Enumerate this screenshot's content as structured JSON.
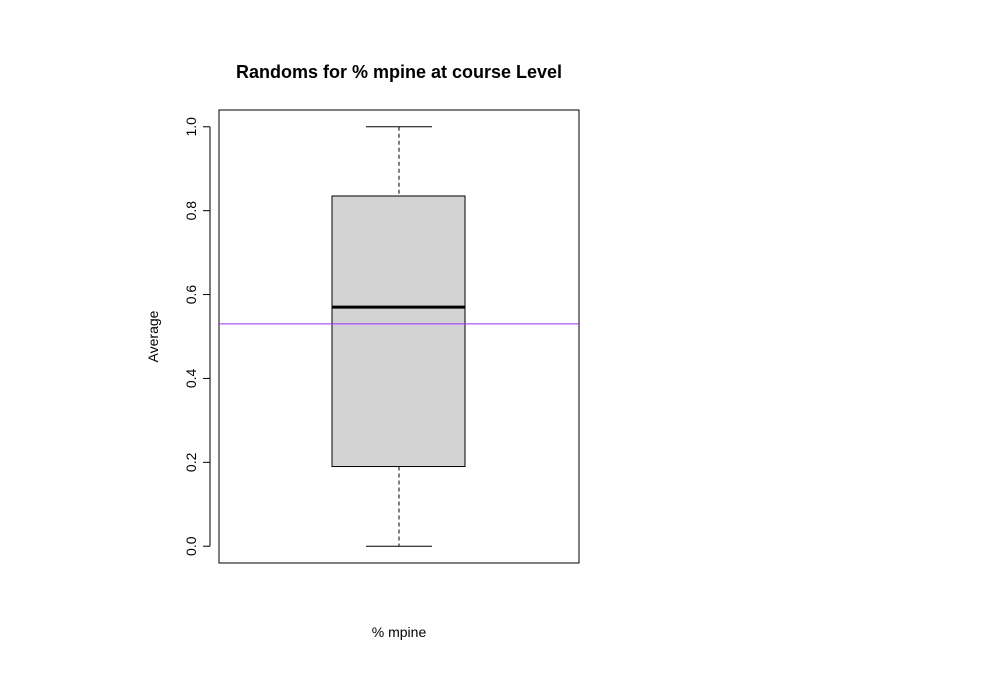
{
  "chart_data": {
    "type": "boxplot",
    "title": "Randoms for % mpine at course Level",
    "xlabel": "% mpine",
    "ylabel": "Average",
    "ylim": [
      -0.04,
      1.04
    ],
    "yticks": [
      0.0,
      0.2,
      0.4,
      0.6,
      0.8,
      1.0
    ],
    "ytick_labels": [
      "0.0",
      "0.2",
      "0.4",
      "0.6",
      "0.8",
      "1.0"
    ],
    "grid": false,
    "box": {
      "min": 0.0,
      "q1": 0.19,
      "median": 0.57,
      "q3": 0.835,
      "max": 1.0,
      "fill": "#d3d3d3"
    },
    "reference_line": {
      "y": 0.53,
      "color": "#9b30ff"
    }
  }
}
